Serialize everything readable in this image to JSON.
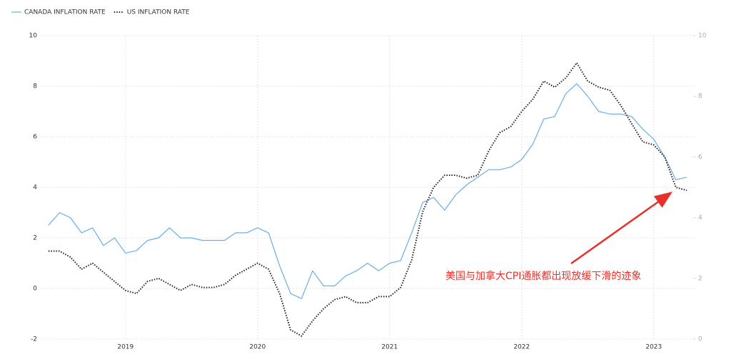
{
  "chart_data": {
    "type": "line",
    "legend": "top-left",
    "grid": true,
    "xlim": [
      2018.32,
      2023.32
    ],
    "xticks": [
      2019,
      2020,
      2021,
      2022,
      2023
    ],
    "ylim": [
      -2,
      10
    ],
    "yticks": [
      -2,
      0,
      2,
      4,
      6,
      8,
      10
    ],
    "y2lim": [
      0,
      10
    ],
    "y2ticks": [
      0,
      2,
      4,
      6,
      8,
      10
    ],
    "x": [
      2018.417,
      2018.5,
      2018.583,
      2018.667,
      2018.75,
      2018.833,
      2018.917,
      2019.0,
      2019.083,
      2019.167,
      2019.25,
      2019.333,
      2019.417,
      2019.5,
      2019.583,
      2019.667,
      2019.75,
      2019.833,
      2019.917,
      2020.0,
      2020.083,
      2020.167,
      2020.25,
      2020.333,
      2020.417,
      2020.5,
      2020.583,
      2020.667,
      2020.75,
      2020.833,
      2020.917,
      2021.0,
      2021.083,
      2021.167,
      2021.25,
      2021.333,
      2021.417,
      2021.5,
      2021.583,
      2021.667,
      2021.75,
      2021.833,
      2021.917,
      2022.0,
      2022.083,
      2022.167,
      2022.25,
      2022.333,
      2022.417,
      2022.5,
      2022.583,
      2022.667,
      2022.75,
      2022.833,
      2022.917,
      2023.0,
      2023.083,
      2023.167,
      2023.25
    ],
    "series": [
      {
        "name": "CANADA INFLATION RATE",
        "color": "#6aaee8",
        "style": "solid",
        "values": [
          2.5,
          3.0,
          2.8,
          2.2,
          2.4,
          1.7,
          2.0,
          1.4,
          1.5,
          1.9,
          2.0,
          2.4,
          2.0,
          2.0,
          1.9,
          1.9,
          1.9,
          2.2,
          2.2,
          2.4,
          2.2,
          0.9,
          -0.2,
          -0.4,
          0.7,
          0.1,
          0.1,
          0.5,
          0.7,
          1.0,
          0.7,
          1.0,
          1.1,
          2.2,
          3.4,
          3.6,
          3.1,
          3.7,
          4.1,
          4.4,
          4.7,
          4.7,
          4.8,
          5.1,
          5.7,
          6.7,
          6.8,
          7.7,
          8.1,
          7.6,
          7.0,
          6.9,
          6.9,
          6.8,
          6.3,
          5.9,
          5.2,
          4.3,
          4.4
        ]
      },
      {
        "name": "US INFLATION RATE",
        "color": "#222222",
        "style": "dotted",
        "axis": "y2",
        "values": [
          2.9,
          2.9,
          2.7,
          2.3,
          2.5,
          2.2,
          1.9,
          1.6,
          1.5,
          1.9,
          2.0,
          1.8,
          1.6,
          1.8,
          1.7,
          1.7,
          1.8,
          2.1,
          2.3,
          2.5,
          2.3,
          1.5,
          0.3,
          0.1,
          0.6,
          1.0,
          1.3,
          1.4,
          1.2,
          1.2,
          1.4,
          1.4,
          1.7,
          2.6,
          4.2,
          5.0,
          5.4,
          5.4,
          5.3,
          5.4,
          6.2,
          6.8,
          7.0,
          7.5,
          7.9,
          8.5,
          8.3,
          8.6,
          9.1,
          8.5,
          8.3,
          8.2,
          7.7,
          7.1,
          6.5,
          6.4,
          6.0,
          5.0,
          4.9
        ]
      }
    ],
    "annotation": "美国与加拿大CPI通胀都出现放缓下滑的迹象"
  }
}
